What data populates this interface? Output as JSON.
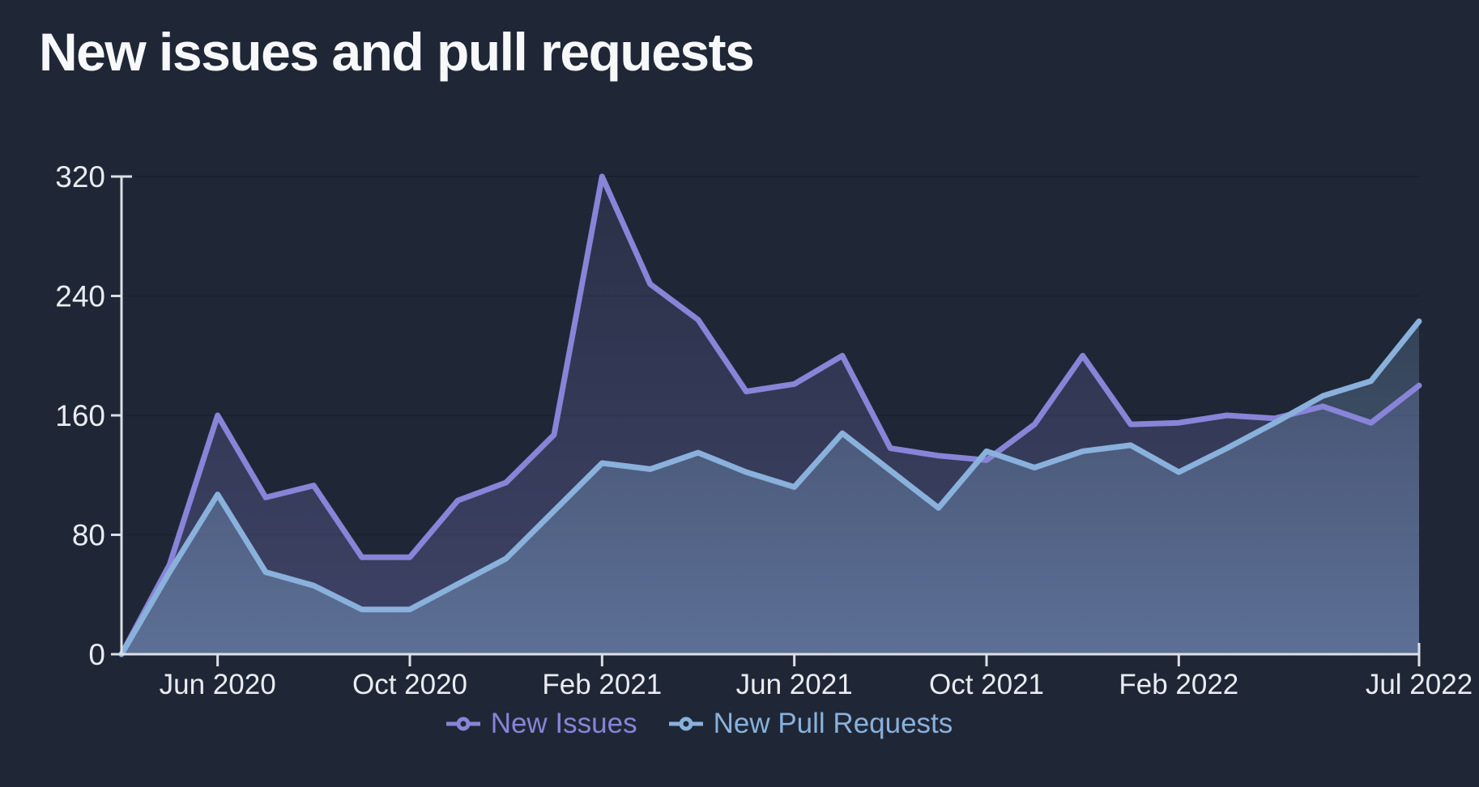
{
  "title": "New issues and pull requests",
  "colors": {
    "background": "#1f2736",
    "issues": "#8884d8",
    "pulls": "#89b1dc",
    "axis_line": "#dbe0e7",
    "tick_label": "#e9ecf1",
    "gridline": "#1a2230",
    "title": "#f7f8fa"
  },
  "legend": [
    {
      "label": "New Issues"
    },
    {
      "label": "New Pull Requests"
    }
  ],
  "chart_data": {
    "type": "area",
    "title": "New issues and pull requests",
    "xlabel": "",
    "ylabel": "",
    "ylim": [
      0,
      320
    ],
    "yticks": [
      0,
      80,
      160,
      240,
      320
    ],
    "grid": "horizontal",
    "legend_position": "bottom",
    "x": [
      "Apr 2020",
      "May 2020",
      "Jun 2020",
      "Jul 2020",
      "Aug 2020",
      "Sep 2020",
      "Oct 2020",
      "Nov 2020",
      "Dec 2020",
      "Jan 2021",
      "Feb 2021",
      "Mar 2021",
      "Apr 2021",
      "May 2021",
      "Jun 2021",
      "Jul 2021",
      "Aug 2021",
      "Sep 2021",
      "Oct 2021",
      "Nov 2021",
      "Dec 2021",
      "Jan 2022",
      "Feb 2022",
      "Mar 2022",
      "Apr 2022",
      "May 2022",
      "Jun 2022",
      "Jul 2022"
    ],
    "xticks": [
      {
        "label": "Jun 2020",
        "index": 2
      },
      {
        "label": "Oct 2020",
        "index": 6
      },
      {
        "label": "Feb 2021",
        "index": 10
      },
      {
        "label": "Jun 2021",
        "index": 14
      },
      {
        "label": "Oct 2021",
        "index": 18
      },
      {
        "label": "Feb 2022",
        "index": 22
      },
      {
        "label": "Jul 2022",
        "index": 27
      }
    ],
    "series": [
      {
        "name": "New Issues",
        "color_key": "issues",
        "values": [
          0,
          60,
          160,
          105,
          113,
          65,
          65,
          103,
          115,
          147,
          320,
          248,
          224,
          176,
          181,
          200,
          138,
          133,
          130,
          154,
          200,
          154,
          155,
          160,
          158,
          166,
          155,
          180
        ]
      },
      {
        "name": "New Pull Requests",
        "color_key": "pulls",
        "values": [
          0,
          55,
          107,
          55,
          46,
          30,
          30,
          47,
          64,
          96,
          128,
          124,
          135,
          122,
          112,
          148,
          123,
          98,
          136,
          125,
          136,
          140,
          122,
          138,
          155,
          173,
          183,
          223
        ]
      }
    ]
  }
}
